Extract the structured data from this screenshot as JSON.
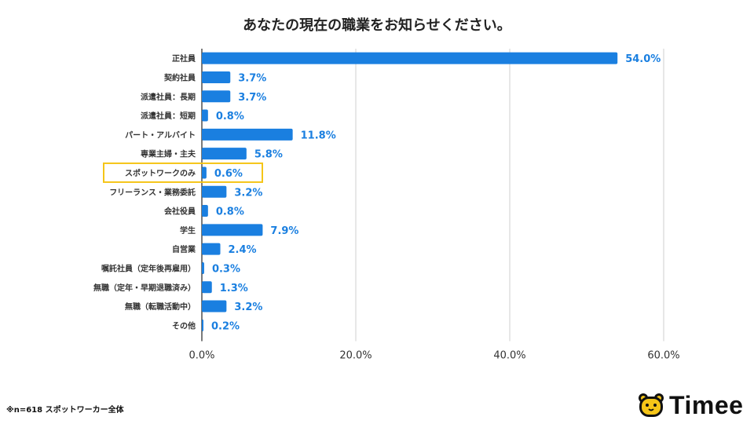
{
  "colors": {
    "bar": "#1a7fe0",
    "value_label": "#1a7fe0",
    "grid": "#cfcfcf",
    "highlight": "#f5c518"
  },
  "footnote": "※n=618 スポットワーカー全体",
  "brand": {
    "name": "Timee",
    "icon": "bear-face-icon"
  },
  "highlight_category": "スポットワークのみ",
  "chart_data": {
    "type": "bar",
    "orientation": "horizontal",
    "title": "あなたの現在の職業をお知らせください。",
    "xlim": [
      0,
      60
    ],
    "x_ticks": [
      "0.0%",
      "20.0%",
      "40.0%",
      "60.0%"
    ],
    "grid": true,
    "categories": [
      "正社員",
      "契約社員",
      "派遣社員：長期",
      "派遣社員：短期",
      "パート・アルバイト",
      "専業主婦・主夫",
      "スポットワークのみ",
      "フリーランス・業務委託",
      "会社役員",
      "学生",
      "自営業",
      "嘱託社員（定年後再雇用）",
      "無職（定年・早期退職済み）",
      "無職（転職活動中）",
      "その他"
    ],
    "values": [
      54.0,
      3.7,
      3.7,
      0.8,
      11.8,
      5.8,
      0.6,
      3.2,
      0.8,
      7.9,
      2.4,
      0.3,
      1.3,
      3.2,
      0.2
    ],
    "value_labels": [
      "54.0%",
      "3.7%",
      "3.7%",
      "0.8%",
      "11.8%",
      "5.8%",
      "0.6%",
      "3.2%",
      "0.8%",
      "7.9%",
      "2.4%",
      "0.3%",
      "1.3%",
      "3.2%",
      "0.2%"
    ]
  }
}
